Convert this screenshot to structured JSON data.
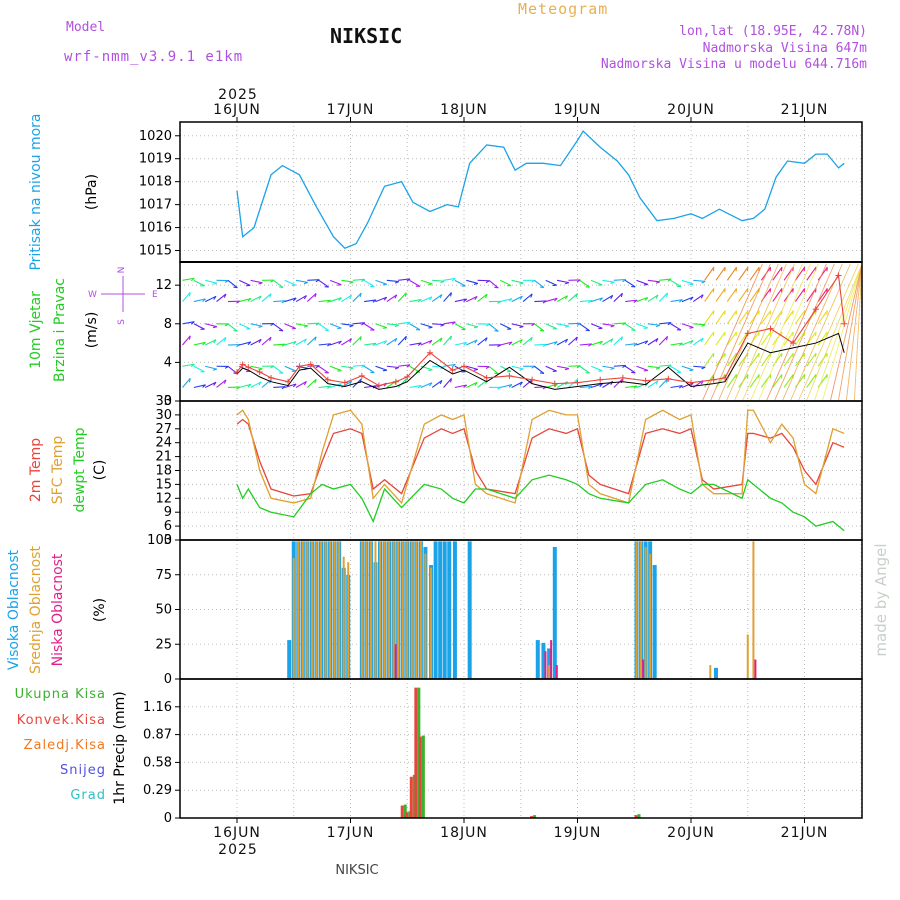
{
  "header": {
    "model_label": "Model",
    "model_name": "wrf-nmm_v3.9.1 e1km",
    "station": "NIKSIC",
    "product": "Meteogram",
    "lonlat": "lon,lat (18.95E, 42.78N)",
    "elevation": "Nadmorska Visina 647m",
    "model_elevation": "Nadmorska Visina u modelu 644.716m"
  },
  "footer": {
    "station": "NIKSIC",
    "credit": "made by Angel"
  },
  "time_axis": {
    "year": "2025",
    "days": [
      "16JUN",
      "17JUN",
      "18JUN",
      "19JUN",
      "20JUN",
      "21JUN"
    ]
  },
  "panels": {
    "pressure": {
      "ylabel_main": "Pritisak na nivou mora",
      "unit": "(hPa)"
    },
    "wind": {
      "ylabel_a": "10m Vjetar",
      "ylabel_b": "Brzina i Pravac",
      "unit": "(m/s)",
      "compass": {
        "n": "N",
        "s": "S",
        "e": "E",
        "w": "W"
      }
    },
    "temp": {
      "labels": [
        "2m Temp",
        "SFC Temp",
        "dewpt Temp"
      ],
      "unit": "(C)"
    },
    "cloud": {
      "labels": [
        "Visoka Oblacnost",
        "Srednja Oblacnost",
        "Niska Oblacnost"
      ],
      "unit": "(%)"
    },
    "precip": {
      "legend": [
        "Ukupna Kisa",
        "Konvek.Kisa",
        "Zaledj.Kisa",
        "Snijeg",
        "Grad"
      ],
      "ylabel": "1hr Precip",
      "unit": "(mm)"
    }
  },
  "colors": {
    "pressure": "#1aa3e8",
    "temp2m": "#e8453c",
    "sfc": "#e0a030",
    "dew": "#22cc22",
    "high_cloud": "#1aa3e8",
    "mid_cloud": "#e0a030",
    "low_cloud": "#e0208a",
    "total_rain": "#3cb030",
    "conv_rain": "#e8453c",
    "frz_rain": "#f07820",
    "snow": "#5050e0",
    "hail": "#30c0c0",
    "model": "#b050e0",
    "meteogram": "#e8b050"
  },
  "chart_data": [
    {
      "type": "line",
      "title": "Pritisak na nivou mora",
      "ylabel": "(hPa)",
      "ylim": [
        1014.5,
        1020.6
      ],
      "yticks": [
        1015,
        1016,
        1017,
        1018,
        1019,
        1020
      ],
      "x_days": [
        0,
        0.05,
        0.15,
        0.3,
        0.4,
        0.55,
        0.7,
        0.85,
        0.95,
        1.05,
        1.15,
        1.3,
        1.45,
        1.55,
        1.7,
        1.85,
        1.95,
        2.05,
        2.2,
        2.35,
        2.45,
        2.55,
        2.7,
        2.85,
        3.0,
        3.05,
        3.2,
        3.35,
        3.45,
        3.55,
        3.7,
        3.85,
        4.0,
        4.1,
        4.25,
        4.45,
        4.55,
        4.65,
        4.75,
        4.85,
        5.0,
        5.1,
        5.2,
        5.3,
        5.35
      ],
      "series": [
        {
          "values": [
            1017.6,
            1015.6,
            1016.0,
            1018.3,
            1018.7,
            1018.3,
            1016.9,
            1015.6,
            1015.1,
            1015.3,
            1016.2,
            1017.8,
            1018.0,
            1017.1,
            1016.7,
            1017.0,
            1016.9,
            1018.8,
            1019.6,
            1019.5,
            1018.5,
            1018.8,
            1018.8,
            1018.7,
            1019.8,
            1020.2,
            1019.5,
            1018.9,
            1018.3,
            1017.3,
            1016.3,
            1016.4,
            1016.6,
            1016.4,
            1016.8,
            1016.3,
            1016.4,
            1016.8,
            1018.2,
            1018.9,
            1018.8,
            1019.2,
            1019.2,
            1018.6,
            1018.8
          ]
        }
      ]
    },
    {
      "type": "line",
      "title": "10m Vjetar Brzina i Pravac",
      "ylabel": "(m/s)",
      "ylim": [
        0,
        14.4
      ],
      "yticks": [
        0,
        4,
        8,
        12
      ],
      "x_days": [
        0,
        0.05,
        0.1,
        0.2,
        0.3,
        0.45,
        0.55,
        0.65,
        0.8,
        0.95,
        1.1,
        1.25,
        1.4,
        1.5,
        1.7,
        1.9,
        2.0,
        2.2,
        2.4,
        2.6,
        2.8,
        3.0,
        3.2,
        3.4,
        3.6,
        3.8,
        4.0,
        4.2,
        4.3,
        4.5,
        4.7,
        4.9,
        5.1,
        5.3,
        5.35
      ],
      "series": [
        {
          "name": "",
          "values": [
            2.8,
            3.4,
            3.2,
            2.5,
            2.0,
            1.6,
            3.2,
            3.4,
            1.8,
            1.5,
            2.0,
            1.2,
            1.5,
            2.0,
            4.2,
            2.8,
            3.2,
            2.0,
            3.5,
            1.8,
            1.2,
            1.5,
            1.8,
            2.0,
            1.7,
            3.5,
            1.5,
            1.8,
            2.0,
            6.0,
            5.0,
            5.5,
            6.0,
            7.0,
            5.0
          ]
        },
        {
          "name": "",
          "values": [
            3.0,
            3.8,
            3.5,
            3.0,
            2.4,
            2.0,
            3.6,
            3.8,
            2.2,
            1.9,
            2.6,
            1.6,
            2.0,
            2.5,
            5.0,
            3.2,
            3.6,
            2.4,
            2.6,
            2.2,
            1.8,
            1.9,
            2.2,
            2.4,
            2.1,
            2.3,
            1.9,
            2.2,
            2.4,
            7.0,
            7.5,
            6.0,
            9.5,
            13.0,
            8.0
          ]
        }
      ]
    },
    {
      "type": "line",
      "title": "2m Temp / SFC Temp / dewpt Temp",
      "ylabel": "(C)",
      "ylim": [
        3,
        33
      ],
      "yticks": [
        3,
        6,
        9,
        12,
        15,
        18,
        21,
        24,
        27,
        30,
        33
      ],
      "x_days": [
        0,
        0.05,
        0.1,
        0.2,
        0.3,
        0.5,
        0.65,
        0.75,
        0.85,
        1.0,
        1.1,
        1.2,
        1.3,
        1.45,
        1.65,
        1.8,
        1.9,
        2.0,
        2.1,
        2.2,
        2.45,
        2.6,
        2.75,
        2.9,
        3.0,
        3.1,
        3.2,
        3.45,
        3.6,
        3.75,
        3.9,
        4.0,
        4.1,
        4.2,
        4.45,
        4.5,
        4.55,
        4.7,
        4.8,
        4.9,
        5.0,
        5.1,
        5.25,
        5.35
      ],
      "series": [
        {
          "name": "2m Temp",
          "values": [
            28,
            29,
            28,
            20,
            14,
            12.5,
            13,
            20,
            26,
            27,
            26,
            14,
            16,
            13,
            25,
            27,
            26,
            27,
            18,
            14,
            13,
            25,
            27,
            26,
            27,
            17,
            15,
            13,
            26,
            27,
            26,
            27,
            16,
            14,
            15,
            26,
            26,
            25,
            26,
            23,
            18,
            15,
            24,
            23
          ]
        },
        {
          "name": "SFC Temp",
          "values": [
            30,
            31,
            29,
            18,
            12,
            11,
            12,
            22,
            30,
            31,
            28,
            12,
            15,
            11,
            28,
            30,
            29,
            30,
            15,
            13,
            11,
            29,
            31,
            30,
            30,
            15,
            13,
            11,
            29,
            31,
            29,
            30,
            15,
            13,
            13,
            31,
            31,
            24,
            28,
            25,
            15,
            13,
            27,
            26
          ]
        },
        {
          "name": "dewpt Temp",
          "values": [
            15,
            12,
            14,
            10,
            9,
            8,
            13,
            15,
            14,
            15,
            12,
            7,
            14,
            10,
            15,
            14,
            12,
            11,
            14,
            14,
            12,
            16,
            17,
            16,
            15,
            13,
            12,
            11,
            15,
            16,
            14,
            13,
            15,
            15,
            12,
            16,
            15,
            12,
            11,
            9,
            8,
            6,
            7,
            5
          ]
        }
      ]
    },
    {
      "type": "bar",
      "title": "Visoka / Srednja / Niska Oblacnost",
      "ylabel": "(%)",
      "ylim": [
        0,
        100
      ],
      "yticks": [
        0,
        25,
        50,
        75,
        100
      ],
      "x_days": [
        0.46,
        0.5,
        0.54,
        0.58,
        0.62,
        0.66,
        0.7,
        0.74,
        0.78,
        0.82,
        0.86,
        0.9,
        0.94,
        0.98,
        1.02,
        1.06,
        1.1,
        1.14,
        1.18,
        1.22,
        1.26,
        1.3,
        1.34,
        1.38,
        1.42,
        1.46,
        1.5,
        1.54,
        1.58,
        1.62,
        1.66,
        1.71,
        1.75,
        1.79,
        1.83,
        1.87,
        1.92,
        2.05,
        2.65,
        2.7,
        2.75,
        2.8,
        3.52,
        3.56,
        3.6,
        3.64,
        3.68,
        4.17,
        4.22,
        4.5,
        4.55
      ],
      "series": [
        {
          "name": "Visoka Oblacnost",
          "values": [
            28,
            99,
            99,
            99,
            99,
            99,
            99,
            99,
            99,
            99,
            99,
            99,
            80,
            75,
            0,
            0,
            99,
            99,
            99,
            84,
            99,
            99,
            99,
            99,
            99,
            99,
            99,
            99,
            99,
            99,
            95,
            82,
            99,
            99,
            99,
            99,
            99,
            99,
            28,
            26,
            22,
            95,
            99,
            99,
            99,
            99,
            82,
            0,
            8,
            0,
            0
          ]
        },
        {
          "name": "Srednja Oblacnost",
          "values": [
            0,
            87,
            99,
            99,
            99,
            99,
            99,
            99,
            99,
            99,
            99,
            99,
            88,
            84,
            0,
            0,
            99,
            99,
            99,
            99,
            99,
            99,
            99,
            99,
            99,
            99,
            99,
            99,
            99,
            99,
            90,
            80,
            0,
            0,
            0,
            0,
            0,
            0,
            0,
            0,
            10,
            0,
            99,
            99,
            95,
            90,
            0,
            10,
            0,
            32,
            99
          ]
        },
        {
          "name": "Niska Oblacnost",
          "values": [
            0,
            0,
            0,
            0,
            0,
            0,
            0,
            0,
            0,
            0,
            0,
            0,
            0,
            0,
            0,
            0,
            0,
            0,
            0,
            0,
            0,
            0,
            0,
            25,
            0,
            0,
            0,
            0,
            0,
            0,
            0,
            0,
            0,
            0,
            0,
            0,
            0,
            0,
            0,
            20,
            28,
            10,
            0,
            14,
            0,
            0,
            0,
            0,
            0,
            0,
            14
          ]
        }
      ]
    },
    {
      "type": "bar",
      "title": "1hr Precip",
      "ylabel": "(mm)",
      "ylim": [
        0,
        1.45
      ],
      "yticks": [
        0,
        0.29,
        0.58,
        0.87,
        1.16
      ],
      "x_days": [
        1.46,
        1.5,
        1.54,
        1.58,
        1.62,
        2.6,
        3.52
      ],
      "series": [
        {
          "name": "Ukupna Kisa",
          "values": [
            0.14,
            0.07,
            0.45,
            1.36,
            0.86,
            0.03,
            0.04
          ]
        },
        {
          "name": "Konvek.Kisa",
          "values": [
            0.13,
            0.06,
            0.43,
            1.36,
            0.85,
            0.02,
            0.03
          ]
        }
      ]
    }
  ]
}
